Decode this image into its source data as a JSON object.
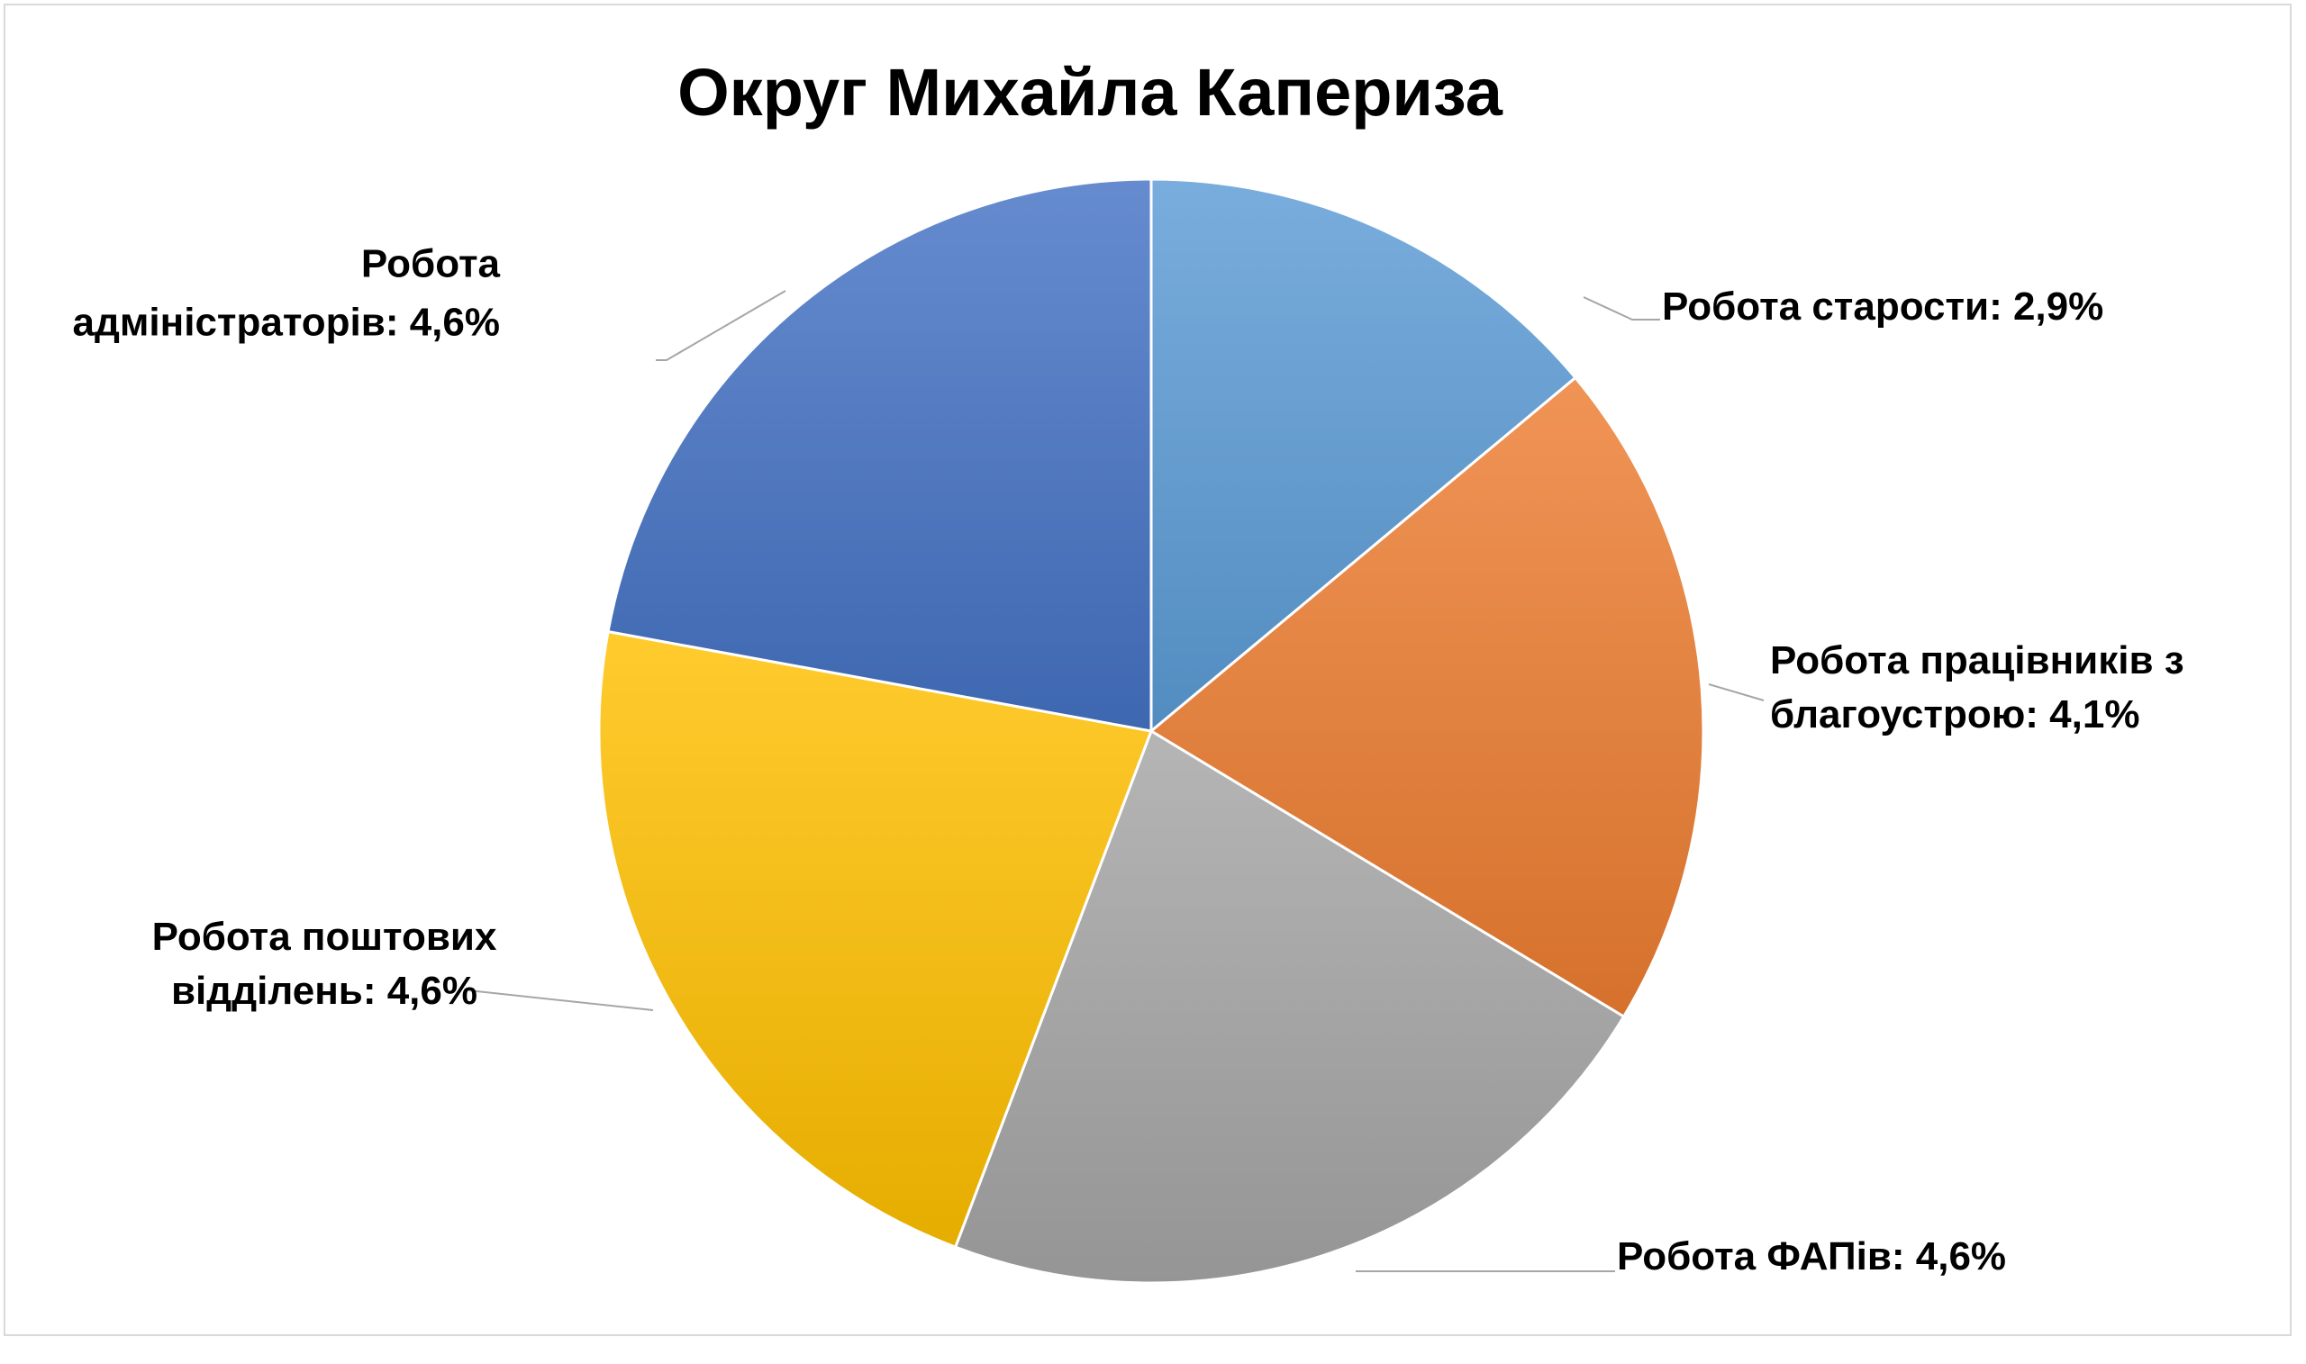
{
  "chart_data": {
    "type": "pie",
    "title": "Округ Михайла Капериза",
    "start_angle_deg": 0,
    "direction": "clockwise",
    "slices": [
      {
        "name": "Робота старости",
        "value": 2.9,
        "label_lines": [
          "Робота старости: 2,9%"
        ],
        "color": "#5b9bd5"
      },
      {
        "name": "Робота працівників з благоустрою",
        "value": 4.1,
        "label_lines": [
          "Робота працівників з",
          "благоустрою: 4,1%"
        ],
        "color": "#ed7d31"
      },
      {
        "name": "Робота ФАПів",
        "value": 4.6,
        "label_lines": [
          "Робота ФАПів: 4,6%"
        ],
        "color": "#a5a5a5"
      },
      {
        "name": "Робота поштових відділень",
        "value": 4.6,
        "label_lines": [
          "Робота поштових",
          "відділень: 4,6%"
        ],
        "color": "#ffc000"
      },
      {
        "name": "Робота адміністраторів",
        "value": 4.6,
        "label_lines": [
          "Робота",
          "адміністраторів: 4,6%"
        ],
        "color": "#4472c4"
      }
    ],
    "legend": "none",
    "data_labels": "outside-with-leader-lines"
  }
}
